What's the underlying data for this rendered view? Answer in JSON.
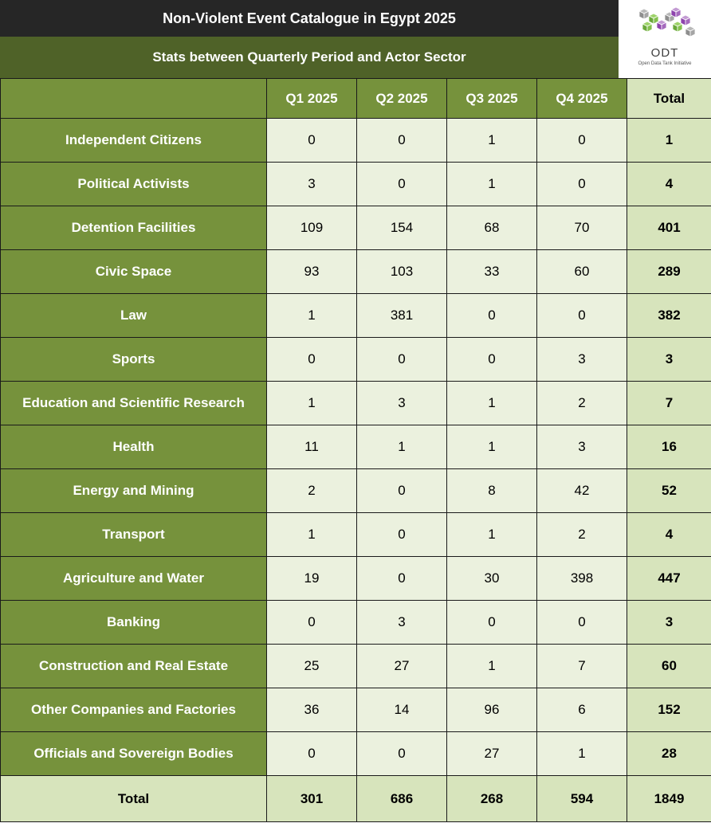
{
  "header": {
    "title": "Non-Violent Event Catalogue in Egypt 2025",
    "subtitle": "Stats between Quarterly Period and Actor Sector"
  },
  "logo": {
    "name": "ODT",
    "tagline": "Open Data Tank Initiative",
    "colors": [
      "#7ab648",
      "#9b59b6",
      "#a9a9a9"
    ]
  },
  "chart_data": {
    "type": "table",
    "columns": [
      "Q1 2025",
      "Q2 2025",
      "Q3 2025",
      "Q4 2025",
      "Total"
    ],
    "rows": [
      {
        "label": "Independent Citizens",
        "values": [
          "0",
          "0",
          "1",
          "0"
        ],
        "total": "1"
      },
      {
        "label": "Political Activists",
        "values": [
          "3",
          "0",
          "1",
          "0"
        ],
        "total": "4"
      },
      {
        "label": "Detention Facilities",
        "values": [
          "109",
          "154",
          "68",
          "70"
        ],
        "total": "401"
      },
      {
        "label": "Civic Space",
        "values": [
          "93",
          "103",
          "33",
          "60"
        ],
        "total": "289"
      },
      {
        "label": "Law",
        "values": [
          "1",
          "381",
          "0",
          "0"
        ],
        "total": "382"
      },
      {
        "label": "Sports",
        "values": [
          "0",
          "0",
          "0",
          "3"
        ],
        "total": "3"
      },
      {
        "label": "Education and Scientific Research",
        "values": [
          "1",
          "3",
          "1",
          "2"
        ],
        "total": "7"
      },
      {
        "label": "Health",
        "values": [
          "11",
          "1",
          "1",
          "3"
        ],
        "total": "16"
      },
      {
        "label": "Energy and Mining",
        "values": [
          "2",
          "0",
          "8",
          "42"
        ],
        "total": "52"
      },
      {
        "label": "Transport",
        "values": [
          "1",
          "0",
          "1",
          "2"
        ],
        "total": "4"
      },
      {
        "label": "Agriculture and Water",
        "values": [
          "19",
          "0",
          "30",
          "398"
        ],
        "total": "447"
      },
      {
        "label": "Banking",
        "values": [
          "0",
          "3",
          "0",
          "0"
        ],
        "total": "3"
      },
      {
        "label": "Construction and Real Estate",
        "values": [
          "25",
          "27",
          "1",
          "7"
        ],
        "total": "60"
      },
      {
        "label": "Other Companies and Factories",
        "values": [
          "36",
          "14",
          "96",
          "6"
        ],
        "total": "152"
      },
      {
        "label": "Officials and Sovereign Bodies",
        "values": [
          "0",
          "0",
          "27",
          "1"
        ],
        "total": "28"
      }
    ],
    "totals": {
      "label": "Total",
      "values": [
        "301",
        "686",
        "268",
        "594"
      ],
      "total": "1849"
    },
    "colors": {
      "title_bg": "#262626",
      "subtitle_bg": "#4f6228",
      "label_bg": "#76923c",
      "cell_bg": "#ebf1de",
      "total_bg": "#d7e4bc"
    }
  }
}
